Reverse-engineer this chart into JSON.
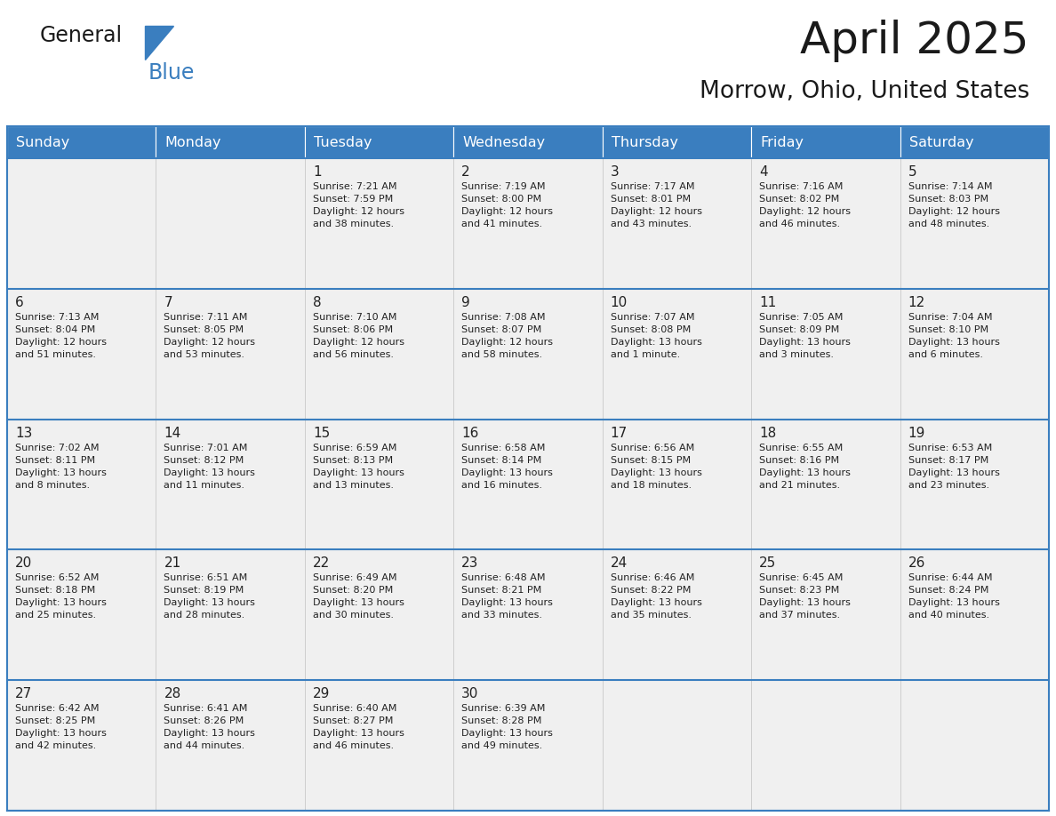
{
  "title": "April 2025",
  "subtitle": "Morrow, Ohio, United States",
  "header_bg": "#3a7ebf",
  "header_text_color": "#ffffff",
  "row_bg": "#f0f0f0",
  "text_color": "#222222",
  "border_color": "#3a7ebf",
  "days_of_week": [
    "Sunday",
    "Monday",
    "Tuesday",
    "Wednesday",
    "Thursday",
    "Friday",
    "Saturday"
  ],
  "weeks": [
    [
      {
        "day": "",
        "info": ""
      },
      {
        "day": "",
        "info": ""
      },
      {
        "day": "1",
        "info": "Sunrise: 7:21 AM\nSunset: 7:59 PM\nDaylight: 12 hours\nand 38 minutes."
      },
      {
        "day": "2",
        "info": "Sunrise: 7:19 AM\nSunset: 8:00 PM\nDaylight: 12 hours\nand 41 minutes."
      },
      {
        "day": "3",
        "info": "Sunrise: 7:17 AM\nSunset: 8:01 PM\nDaylight: 12 hours\nand 43 minutes."
      },
      {
        "day": "4",
        "info": "Sunrise: 7:16 AM\nSunset: 8:02 PM\nDaylight: 12 hours\nand 46 minutes."
      },
      {
        "day": "5",
        "info": "Sunrise: 7:14 AM\nSunset: 8:03 PM\nDaylight: 12 hours\nand 48 minutes."
      }
    ],
    [
      {
        "day": "6",
        "info": "Sunrise: 7:13 AM\nSunset: 8:04 PM\nDaylight: 12 hours\nand 51 minutes."
      },
      {
        "day": "7",
        "info": "Sunrise: 7:11 AM\nSunset: 8:05 PM\nDaylight: 12 hours\nand 53 minutes."
      },
      {
        "day": "8",
        "info": "Sunrise: 7:10 AM\nSunset: 8:06 PM\nDaylight: 12 hours\nand 56 minutes."
      },
      {
        "day": "9",
        "info": "Sunrise: 7:08 AM\nSunset: 8:07 PM\nDaylight: 12 hours\nand 58 minutes."
      },
      {
        "day": "10",
        "info": "Sunrise: 7:07 AM\nSunset: 8:08 PM\nDaylight: 13 hours\nand 1 minute."
      },
      {
        "day": "11",
        "info": "Sunrise: 7:05 AM\nSunset: 8:09 PM\nDaylight: 13 hours\nand 3 minutes."
      },
      {
        "day": "12",
        "info": "Sunrise: 7:04 AM\nSunset: 8:10 PM\nDaylight: 13 hours\nand 6 minutes."
      }
    ],
    [
      {
        "day": "13",
        "info": "Sunrise: 7:02 AM\nSunset: 8:11 PM\nDaylight: 13 hours\nand 8 minutes."
      },
      {
        "day": "14",
        "info": "Sunrise: 7:01 AM\nSunset: 8:12 PM\nDaylight: 13 hours\nand 11 minutes."
      },
      {
        "day": "15",
        "info": "Sunrise: 6:59 AM\nSunset: 8:13 PM\nDaylight: 13 hours\nand 13 minutes."
      },
      {
        "day": "16",
        "info": "Sunrise: 6:58 AM\nSunset: 8:14 PM\nDaylight: 13 hours\nand 16 minutes."
      },
      {
        "day": "17",
        "info": "Sunrise: 6:56 AM\nSunset: 8:15 PM\nDaylight: 13 hours\nand 18 minutes."
      },
      {
        "day": "18",
        "info": "Sunrise: 6:55 AM\nSunset: 8:16 PM\nDaylight: 13 hours\nand 21 minutes."
      },
      {
        "day": "19",
        "info": "Sunrise: 6:53 AM\nSunset: 8:17 PM\nDaylight: 13 hours\nand 23 minutes."
      }
    ],
    [
      {
        "day": "20",
        "info": "Sunrise: 6:52 AM\nSunset: 8:18 PM\nDaylight: 13 hours\nand 25 minutes."
      },
      {
        "day": "21",
        "info": "Sunrise: 6:51 AM\nSunset: 8:19 PM\nDaylight: 13 hours\nand 28 minutes."
      },
      {
        "day": "22",
        "info": "Sunrise: 6:49 AM\nSunset: 8:20 PM\nDaylight: 13 hours\nand 30 minutes."
      },
      {
        "day": "23",
        "info": "Sunrise: 6:48 AM\nSunset: 8:21 PM\nDaylight: 13 hours\nand 33 minutes."
      },
      {
        "day": "24",
        "info": "Sunrise: 6:46 AM\nSunset: 8:22 PM\nDaylight: 13 hours\nand 35 minutes."
      },
      {
        "day": "25",
        "info": "Sunrise: 6:45 AM\nSunset: 8:23 PM\nDaylight: 13 hours\nand 37 minutes."
      },
      {
        "day": "26",
        "info": "Sunrise: 6:44 AM\nSunset: 8:24 PM\nDaylight: 13 hours\nand 40 minutes."
      }
    ],
    [
      {
        "day": "27",
        "info": "Sunrise: 6:42 AM\nSunset: 8:25 PM\nDaylight: 13 hours\nand 42 minutes."
      },
      {
        "day": "28",
        "info": "Sunrise: 6:41 AM\nSunset: 8:26 PM\nDaylight: 13 hours\nand 44 minutes."
      },
      {
        "day": "29",
        "info": "Sunrise: 6:40 AM\nSunset: 8:27 PM\nDaylight: 13 hours\nand 46 minutes."
      },
      {
        "day": "30",
        "info": "Sunrise: 6:39 AM\nSunset: 8:28 PM\nDaylight: 13 hours\nand 49 minutes."
      },
      {
        "day": "",
        "info": ""
      },
      {
        "day": "",
        "info": ""
      },
      {
        "day": "",
        "info": ""
      }
    ]
  ]
}
